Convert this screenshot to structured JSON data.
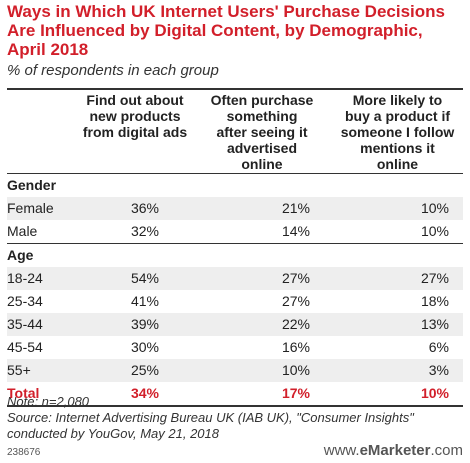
{
  "chart_data": {
    "type": "table",
    "title": "Ways in Which UK Internet Users' Purchase Decisions Are Influenced by Digital Content, by Demographic, April 2018",
    "subtitle": "% of respondents in each group",
    "columns": [
      "Find out about new products from digital ads",
      "Often purchase something after seeing it advertised online",
      "More likely to buy a product if someone I follow mentions it online"
    ],
    "sections": [
      {
        "name": "Gender",
        "rows": [
          {
            "label": "Female",
            "values": [
              "36%",
              "21%",
              "10%"
            ]
          },
          {
            "label": "Male",
            "values": [
              "32%",
              "14%",
              "10%"
            ]
          }
        ]
      },
      {
        "name": "Age",
        "rows": [
          {
            "label": "18-24",
            "values": [
              "54%",
              "27%",
              "27%"
            ]
          },
          {
            "label": "25-34",
            "values": [
              "41%",
              "27%",
              "18%"
            ]
          },
          {
            "label": "35-44",
            "values": [
              "39%",
              "22%",
              "13%"
            ]
          },
          {
            "label": "45-54",
            "values": [
              "30%",
              "16%",
              "6%"
            ]
          },
          {
            "label": "55+",
            "values": [
              "25%",
              "10%",
              "3%"
            ]
          }
        ]
      }
    ],
    "total": {
      "label": "Total",
      "values": [
        "34%",
        "17%",
        "10%"
      ]
    }
  },
  "header": {
    "title_line1": "Ways in Which UK Internet Users' Purchase Decisions",
    "title_line2": "Are Influenced by Digital Content, by Demographic,",
    "title_line3": "April 2018",
    "subtitle": "% of respondents in each group"
  },
  "columns": {
    "c1": [
      "Find out about",
      "new products",
      "from digital ads"
    ],
    "c2": [
      "Often purchase",
      "something",
      "after seeing it",
      "advertised",
      "online"
    ],
    "c3": [
      "More likely to",
      "buy a product if",
      "someone I follow",
      "mentions it",
      "online"
    ]
  },
  "footer": {
    "note": "Note: n=2,080",
    "source_line1": "Source: Internet Advertising Bureau UK (IAB UK), \"Consumer Insights\"",
    "source_line2": "conducted by YouGov, May 21, 2018",
    "chart_id": "238676",
    "brand_prefix": "www.",
    "brand_name": "eMarketer",
    "brand_suffix": ".com"
  },
  "colors": {
    "accent": "#d21f2a",
    "stripe": "#eeeeee",
    "text": "#222222"
  }
}
